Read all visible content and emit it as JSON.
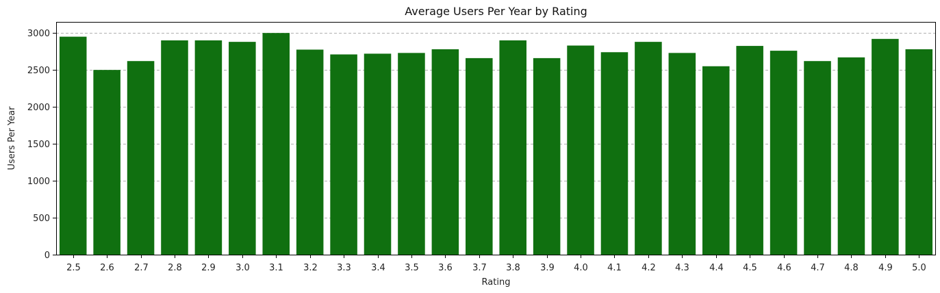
{
  "chart_data": {
    "type": "bar",
    "title": "Average Users Per Year by Rating",
    "xlabel": "Rating",
    "ylabel": "Users Per Year",
    "categories": [
      "2.5",
      "2.6",
      "2.7",
      "2.8",
      "2.9",
      "3.0",
      "3.1",
      "3.2",
      "3.3",
      "3.4",
      "3.5",
      "3.6",
      "3.7",
      "3.8",
      "3.9",
      "4.0",
      "4.1",
      "4.2",
      "4.3",
      "4.4",
      "4.5",
      "4.6",
      "4.7",
      "4.8",
      "4.9",
      "5.0"
    ],
    "values": [
      2950,
      2500,
      2620,
      2900,
      2900,
      2880,
      3000,
      2775,
      2710,
      2720,
      2730,
      2780,
      2660,
      2900,
      2660,
      2830,
      2740,
      2880,
      2730,
      2550,
      2825,
      2760,
      2620,
      2670,
      2920,
      2780
    ],
    "ylim": [
      0,
      3150
    ],
    "yticks": [
      0,
      500,
      1000,
      1500,
      2000,
      2500,
      3000
    ],
    "grid": "y-dashed",
    "bar_color": "#107010"
  }
}
